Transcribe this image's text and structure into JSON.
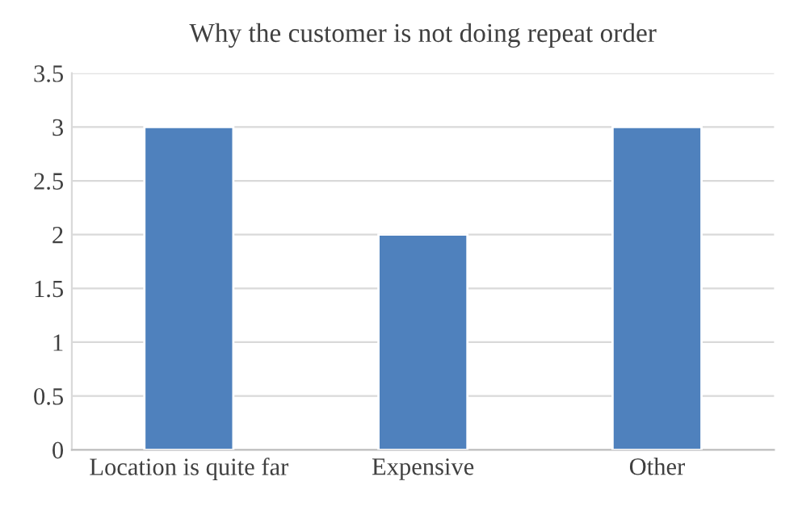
{
  "chart_data": {
    "type": "bar",
    "title": "Why the customer is not doing repeat order",
    "categories": [
      "Location is quite far",
      "Expensive",
      "Other"
    ],
    "values": [
      3,
      2,
      3
    ],
    "color": "#4f81bd",
    "ylim": [
      0,
      3.5
    ],
    "yticks": [
      0,
      0.5,
      1,
      1.5,
      2,
      2.5,
      3,
      3.5
    ],
    "grid": "y",
    "legend": false
  }
}
